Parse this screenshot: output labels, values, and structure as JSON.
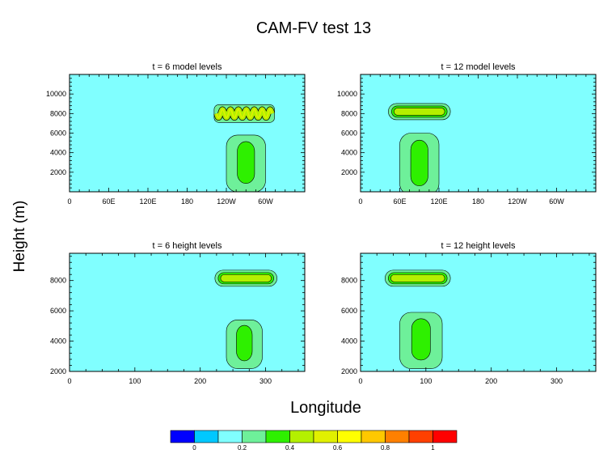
{
  "figure": {
    "title": "CAM-FV test 13",
    "ylabel": "Height (m)",
    "xlabel": "Longitude"
  },
  "chart_data": [
    {
      "type": "heatmap",
      "title": "t = 6 model levels",
      "x_ticks": [
        "0",
        "60E",
        "120E",
        "180",
        "120W",
        "60W"
      ],
      "x_tick_values": [
        0,
        60,
        120,
        180,
        240,
        300
      ],
      "xlim": [
        0,
        360
      ],
      "y_ticks": [
        "2000",
        "4000",
        "6000",
        "8000",
        "10000"
      ],
      "y_tick_values": [
        2000,
        4000,
        6000,
        8000,
        10000
      ],
      "ylim": [
        0,
        12000
      ],
      "background_level": 0.1,
      "features": [
        {
          "kind": "wavy_band",
          "x_range": [
            225,
            310
          ],
          "y_center": 8000,
          "level": 0.4,
          "peak_level": 0.5
        },
        {
          "kind": "plume",
          "x_range": [
            240,
            300
          ],
          "y_range": [
            300,
            5800
          ],
          "level": 0.2,
          "core_level": 0.3
        }
      ]
    },
    {
      "type": "heatmap",
      "title": "t = 12 model levels",
      "x_ticks": [
        "0",
        "60E",
        "120E",
        "180",
        "120W",
        "60W"
      ],
      "x_tick_values": [
        0,
        60,
        120,
        180,
        240,
        300
      ],
      "xlim": [
        0,
        360
      ],
      "y_ticks": [
        "2000",
        "4000",
        "6000",
        "8000",
        "10000"
      ],
      "y_tick_values": [
        2000,
        4000,
        6000,
        8000,
        10000
      ],
      "ylim": [
        0,
        12000
      ],
      "background_level": 0.1,
      "features": [
        {
          "kind": "band",
          "x_range": [
            45,
            135
          ],
          "y_center": 8200,
          "level": 0.4
        },
        {
          "kind": "plume",
          "x_range": [
            60,
            120
          ],
          "y_range": [
            0,
            6000
          ],
          "level": 0.2,
          "core_level": 0.3
        }
      ]
    },
    {
      "type": "heatmap",
      "title": "t = 6 height levels",
      "x_ticks": [
        "0",
        "100",
        "200",
        "300"
      ],
      "x_tick_values": [
        0,
        100,
        200,
        300
      ],
      "xlim": [
        0,
        360
      ],
      "y_ticks": [
        "2000",
        "4000",
        "6000",
        "8000"
      ],
      "y_tick_values": [
        2000,
        4000,
        6000,
        8000
      ],
      "ylim": [
        2000,
        9800
      ],
      "background_level": 0.1,
      "features": [
        {
          "kind": "band",
          "x_range": [
            225,
            315
          ],
          "y_center": 8150,
          "level": 0.4
        },
        {
          "kind": "plume",
          "x_range": [
            240,
            295
          ],
          "y_range": [
            2400,
            5400
          ],
          "level": 0.2,
          "core_level": 0.3
        }
      ]
    },
    {
      "type": "heatmap",
      "title": "t = 12 height levels",
      "x_ticks": [
        "0",
        "100",
        "200",
        "300"
      ],
      "x_tick_values": [
        0,
        100,
        200,
        300
      ],
      "xlim": [
        0,
        360
      ],
      "y_ticks": [
        "2000",
        "4000",
        "6000",
        "8000"
      ],
      "y_tick_values": [
        2000,
        4000,
        6000,
        8000
      ],
      "ylim": [
        2000,
        9800
      ],
      "background_level": 0.1,
      "features": [
        {
          "kind": "band",
          "x_range": [
            40,
            135
          ],
          "y_center": 8150,
          "level": 0.4
        },
        {
          "kind": "plume",
          "x_range": [
            60,
            125
          ],
          "y_range": [
            2400,
            5900
          ],
          "level": 0.2,
          "core_level": 0.3
        }
      ]
    }
  ],
  "colorbar": {
    "levels": [
      -0.1,
      0,
      0.1,
      0.2,
      0.3,
      0.4,
      0.5,
      0.6,
      0.7,
      0.8,
      0.9,
      1.0,
      1.1
    ],
    "colors": [
      "#0000ff",
      "#00c8ff",
      "#80ffff",
      "#6ef09a",
      "#2ef000",
      "#b4f000",
      "#e1f000",
      "#ffff00",
      "#ffc800",
      "#ff8000",
      "#ff4000",
      "#ff0000"
    ],
    "labels": [
      {
        "text": "0",
        "value": 0
      },
      {
        "text": "0.2",
        "value": 0.2
      },
      {
        "text": "0.4",
        "value": 0.4
      },
      {
        "text": "0.6",
        "value": 0.6
      },
      {
        "text": "0.8",
        "value": 0.8
      },
      {
        "text": "1",
        "value": 1.0
      }
    ]
  }
}
